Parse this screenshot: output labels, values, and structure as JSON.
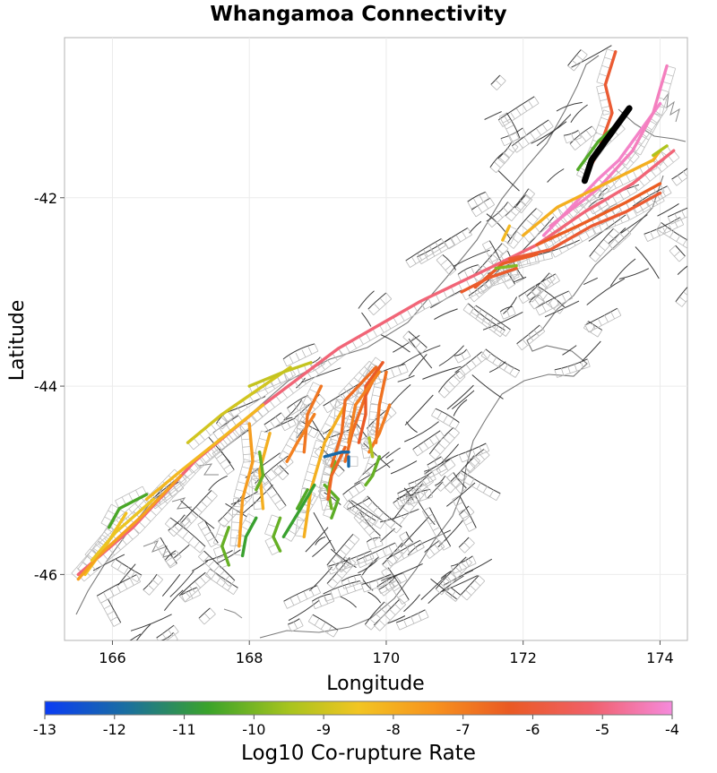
{
  "chart_data": {
    "type": "map",
    "title": "Whangamoa Connectivity",
    "xlabel": "Longitude",
    "ylabel": "Latitude",
    "xlim": [
      165.3,
      174.4
    ],
    "ylim": [
      -46.7,
      -40.3
    ],
    "x_ticks": [
      166,
      168,
      170,
      172,
      174
    ],
    "y_ticks": [
      -42,
      -44,
      -46
    ],
    "colorbar": {
      "label": "Log10 Co-rupture Rate",
      "min": -13,
      "max": -4,
      "ticks": [
        -13,
        -12,
        -11,
        -10,
        -9,
        -8,
        -7,
        -6,
        -5,
        -4
      ],
      "colors": [
        "#0a3cf5",
        "#1a6fa0",
        "#3aa32a",
        "#a8c41e",
        "#f2c522",
        "#f7931e",
        "#ea5a23",
        "#f0606a",
        "#f58adc"
      ]
    },
    "highlighted_fault": {
      "name": "Whangamoa",
      "color": "#000000",
      "path": [
        [
          172.9,
          -41.82
        ],
        [
          173.0,
          -41.6
        ],
        [
          173.3,
          -41.3
        ],
        [
          173.55,
          -41.05
        ]
      ]
    },
    "faults": [
      {
        "rate": -5.0,
        "path": [
          [
            165.5,
            -46.0
          ],
          [
            166.3,
            -45.5
          ],
          [
            167.2,
            -44.8
          ],
          [
            168.2,
            -44.2
          ],
          [
            169.3,
            -43.6
          ],
          [
            170.5,
            -43.1
          ],
          [
            171.5,
            -42.75
          ],
          [
            172.2,
            -42.5
          ],
          [
            172.9,
            -42.15
          ],
          [
            173.6,
            -41.85
          ],
          [
            174.2,
            -41.5
          ]
        ]
      },
      {
        "rate": -4.2,
        "path": [
          [
            172.3,
            -42.4
          ],
          [
            172.7,
            -42.1
          ],
          [
            173.1,
            -41.8
          ],
          [
            173.4,
            -41.6
          ],
          [
            173.7,
            -41.3
          ],
          [
            174.0,
            -41.0
          ]
        ]
      },
      {
        "rate": -4.3,
        "path": [
          [
            172.4,
            -42.3
          ],
          [
            173.1,
            -41.9
          ],
          [
            173.6,
            -41.5
          ],
          [
            173.9,
            -41.1
          ],
          [
            174.1,
            -40.6
          ]
        ]
      },
      {
        "rate": -6.0,
        "path": [
          [
            173.35,
            -40.45
          ],
          [
            173.2,
            -40.8
          ],
          [
            173.3,
            -41.1
          ],
          [
            173.1,
            -41.5
          ],
          [
            172.9,
            -41.8
          ]
        ]
      },
      {
        "rate": -10.5,
        "path": [
          [
            172.8,
            -41.7
          ],
          [
            173.1,
            -41.4
          ],
          [
            173.4,
            -41.2
          ]
        ]
      },
      {
        "rate": -8.0,
        "path": [
          [
            172.0,
            -42.4
          ],
          [
            172.5,
            -42.1
          ],
          [
            173.2,
            -41.85
          ],
          [
            173.9,
            -41.6
          ],
          [
            174.0,
            -41.5
          ]
        ]
      },
      {
        "rate": -6.3,
        "path": [
          [
            172.2,
            -42.5
          ],
          [
            172.8,
            -42.3
          ],
          [
            173.5,
            -42.05
          ],
          [
            174.0,
            -41.85
          ]
        ]
      },
      {
        "rate": -6.0,
        "path": [
          [
            171.8,
            -42.65
          ],
          [
            172.4,
            -42.55
          ],
          [
            173.0,
            -42.3
          ],
          [
            173.5,
            -42.15
          ],
          [
            174.0,
            -41.95
          ]
        ]
      },
      {
        "rate": -6.2,
        "path": [
          [
            171.3,
            -42.95
          ],
          [
            171.7,
            -42.7
          ],
          [
            172.2,
            -42.6
          ]
        ]
      },
      {
        "rate": -6.1,
        "path": [
          [
            171.1,
            -43.0
          ],
          [
            171.5,
            -42.85
          ],
          [
            171.9,
            -42.75
          ]
        ]
      },
      {
        "rate": -10.0,
        "path": [
          [
            171.6,
            -42.75
          ],
          [
            171.9,
            -42.72
          ]
        ]
      },
      {
        "rate": -8.2,
        "path": [
          [
            171.7,
            -42.45
          ],
          [
            171.8,
            -42.3
          ]
        ]
      },
      {
        "rate": -9.5,
        "path": [
          [
            173.9,
            -41.55
          ],
          [
            174.1,
            -41.45
          ]
        ]
      },
      {
        "rate": -9.0,
        "path": [
          [
            167.1,
            -44.6
          ],
          [
            167.6,
            -44.3
          ],
          [
            168.1,
            -44.05
          ],
          [
            168.6,
            -43.8
          ]
        ]
      },
      {
        "rate": -9.2,
        "path": [
          [
            168.0,
            -44.0
          ],
          [
            168.5,
            -43.85
          ],
          [
            168.9,
            -43.75
          ]
        ]
      },
      {
        "rate": -8.2,
        "path": [
          [
            166.5,
            -45.2
          ],
          [
            167.0,
            -44.9
          ],
          [
            167.6,
            -44.55
          ],
          [
            168.2,
            -44.2
          ]
        ]
      },
      {
        "rate": -7.6,
        "path": [
          [
            168.0,
            -44.4
          ],
          [
            168.05,
            -44.8
          ],
          [
            167.9,
            -45.2
          ],
          [
            167.85,
            -45.7
          ]
        ]
      },
      {
        "rate": -8.0,
        "path": [
          [
            168.3,
            -44.5
          ],
          [
            168.15,
            -44.9
          ],
          [
            168.2,
            -45.3
          ]
        ]
      },
      {
        "rate": -8.0,
        "path": [
          [
            169.4,
            -44.2
          ],
          [
            169.1,
            -44.6
          ],
          [
            168.9,
            -45.1
          ],
          [
            168.8,
            -45.6
          ]
        ]
      },
      {
        "rate": -10.3,
        "path": [
          [
            168.15,
            -44.7
          ],
          [
            168.2,
            -44.95
          ],
          [
            168.1,
            -45.1
          ]
        ]
      },
      {
        "rate": -10.3,
        "path": [
          [
            167.7,
            -45.5
          ],
          [
            167.6,
            -45.7
          ],
          [
            167.7,
            -45.9
          ]
        ]
      },
      {
        "rate": -10.8,
        "path": [
          [
            168.1,
            -45.4
          ],
          [
            167.95,
            -45.6
          ],
          [
            167.9,
            -45.8
          ]
        ]
      },
      {
        "rate": -10.3,
        "path": [
          [
            168.45,
            -45.4
          ],
          [
            168.35,
            -45.6
          ],
          [
            168.45,
            -45.75
          ]
        ]
      },
      {
        "rate": -10.5,
        "path": [
          [
            168.7,
            -45.3
          ],
          [
            168.85,
            -45.1
          ]
        ]
      },
      {
        "rate": -10.8,
        "path": [
          [
            168.5,
            -45.6
          ],
          [
            168.75,
            -45.3
          ],
          [
            168.95,
            -45.05
          ]
        ]
      },
      {
        "rate": -10.4,
        "path": [
          [
            169.1,
            -45.05
          ],
          [
            169.3,
            -45.2
          ],
          [
            169.2,
            -45.4
          ]
        ]
      },
      {
        "rate": -10.2,
        "path": [
          [
            169.25,
            -44.8
          ],
          [
            169.15,
            -45.1
          ],
          [
            169.2,
            -45.3
          ]
        ]
      },
      {
        "rate": -6.6,
        "path": [
          [
            169.9,
            -43.8
          ],
          [
            169.7,
            -44.1
          ],
          [
            169.5,
            -44.5
          ],
          [
            169.4,
            -44.8
          ]
        ]
      },
      {
        "rate": -6.7,
        "path": [
          [
            170.0,
            -43.85
          ],
          [
            169.9,
            -44.2
          ],
          [
            169.85,
            -44.6
          ]
        ]
      },
      {
        "rate": -6.2,
        "path": [
          [
            169.95,
            -43.75
          ],
          [
            169.7,
            -44.0
          ],
          [
            169.7,
            -44.3
          ],
          [
            169.6,
            -44.6
          ]
        ]
      },
      {
        "rate": -7.0,
        "path": [
          [
            169.9,
            -43.85
          ],
          [
            169.55,
            -44.2
          ],
          [
            169.45,
            -44.6
          ]
        ]
      },
      {
        "rate": -6.6,
        "path": [
          [
            169.85,
            -43.8
          ],
          [
            169.4,
            -44.15
          ],
          [
            169.35,
            -44.5
          ],
          [
            169.2,
            -44.85
          ]
        ]
      },
      {
        "rate": -6.8,
        "path": [
          [
            169.05,
            -44.0
          ],
          [
            168.85,
            -44.3
          ],
          [
            168.8,
            -44.7
          ]
        ]
      },
      {
        "rate": -7.0,
        "path": [
          [
            168.95,
            -44.3
          ],
          [
            168.7,
            -44.6
          ],
          [
            168.55,
            -44.8
          ]
        ]
      },
      {
        "rate": -6.5,
        "path": [
          [
            169.4,
            -44.65
          ],
          [
            169.2,
            -44.95
          ],
          [
            169.15,
            -45.2
          ]
        ]
      },
      {
        "rate": -6.9,
        "path": [
          [
            170.05,
            -44.2
          ],
          [
            169.9,
            -44.5
          ],
          [
            169.75,
            -44.7
          ]
        ]
      },
      {
        "rate": -12.0,
        "path": [
          [
            169.1,
            -44.75
          ],
          [
            169.35,
            -44.7
          ],
          [
            169.45,
            -44.7
          ]
        ]
      },
      {
        "rate": -12.0,
        "path": [
          [
            169.45,
            -44.85
          ],
          [
            169.45,
            -44.75
          ]
        ]
      },
      {
        "rate": -9.5,
        "path": [
          [
            169.75,
            -44.55
          ],
          [
            169.8,
            -44.75
          ]
        ]
      },
      {
        "rate": -10.3,
        "path": [
          [
            169.9,
            -44.75
          ],
          [
            169.8,
            -44.95
          ],
          [
            169.7,
            -45.05
          ]
        ]
      },
      {
        "rate": -10.6,
        "path": [
          [
            166.5,
            -45.15
          ],
          [
            166.1,
            -45.3
          ],
          [
            165.95,
            -45.5
          ]
        ]
      },
      {
        "rate": -8.4,
        "path": [
          [
            166.2,
            -45.35
          ],
          [
            165.9,
            -45.7
          ],
          [
            165.6,
            -46.0
          ]
        ]
      },
      {
        "rate": -7.7,
        "path": [
          [
            167.0,
            -44.95
          ],
          [
            166.4,
            -45.4
          ],
          [
            165.8,
            -45.8
          ],
          [
            165.5,
            -46.05
          ]
        ]
      },
      {
        "rate": -8.6,
        "path": [
          [
            166.6,
            -45.2
          ],
          [
            166.05,
            -45.55
          ],
          [
            165.7,
            -45.85
          ]
        ]
      }
    ]
  }
}
